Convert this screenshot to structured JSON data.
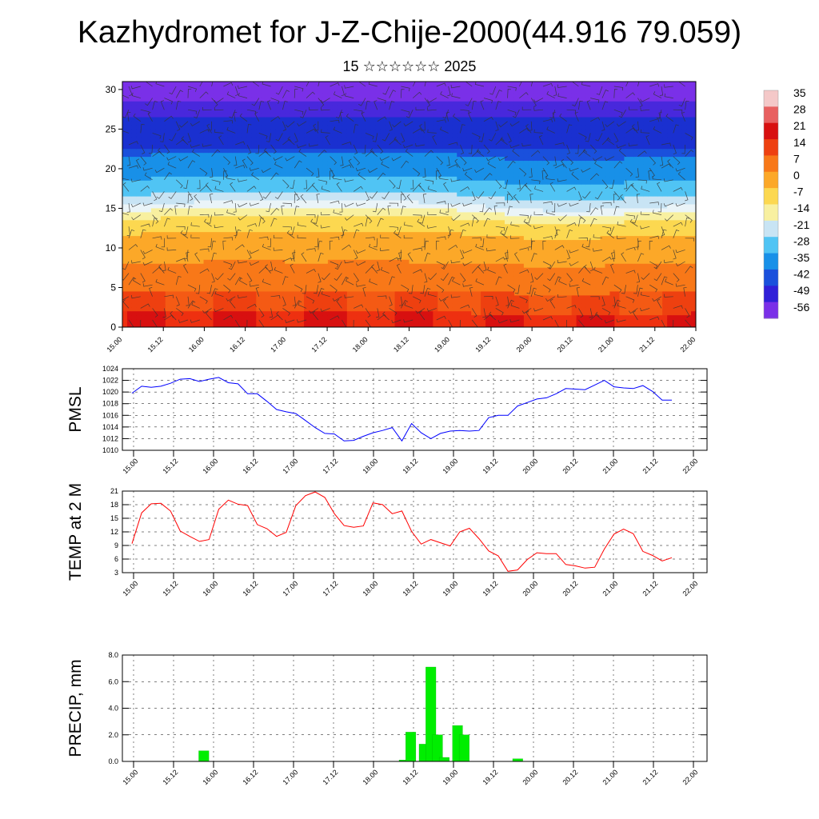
{
  "header": {
    "title": "Kazhydromet for J-Z-Chije-2000(44.916 79.059)",
    "subtitle": "15 ☆☆☆☆☆☆ 2025"
  },
  "x_ticks": [
    "15.00",
    "15.12",
    "16.00",
    "16.12",
    "17.00",
    "17.12",
    "18.00",
    "18.12",
    "19.00",
    "19.12",
    "20.00",
    "20.12",
    "21.00",
    "21.12",
    "22.00"
  ],
  "chart_data": [
    {
      "type": "heatmap",
      "name": "vertical-temperature-wind-section",
      "x_ticks": [
        "15.00",
        "15.12",
        "16.00",
        "16.12",
        "17.00",
        "17.12",
        "18.00",
        "18.12",
        "19.00",
        "19.12",
        "20.00",
        "20.12",
        "21.00",
        "21.12",
        "22.00"
      ],
      "y_ticks": [
        0,
        5,
        10,
        15,
        20,
        25,
        30
      ],
      "ylim": [
        0,
        31
      ],
      "colorbar": {
        "labels": [
          "35",
          "28",
          "21",
          "14",
          "7",
          "0",
          "-7",
          "-14",
          "-21",
          "-28",
          "-35",
          "-42",
          "-49",
          "-56"
        ],
        "colors": [
          "#f4c8c8",
          "#e86060",
          "#d81010",
          "#ee4010",
          "#f87818",
          "#fca828",
          "#fcd850",
          "#f8f0a0",
          "#c8e4f4",
          "#50c4f4",
          "#1890e8",
          "#1a50dc",
          "#3020d8",
          "#7a30e8"
        ]
      },
      "freezing_level": [
        14.6,
        14.8,
        15.0,
        15.2,
        15.0,
        15.0,
        15.2,
        15.0,
        14.8,
        14.4,
        14.0,
        13.8,
        14.2,
        14.4,
        14.6
      ],
      "wind": "wind barbs overlay"
    },
    {
      "type": "line",
      "name": "pmsl",
      "ylabel": "PMSL",
      "ylim": [
        1010,
        1024
      ],
      "yticks": [
        1010,
        1012,
        1014,
        1016,
        1018,
        1020,
        1022,
        1024
      ],
      "color": "#0000ff",
      "values": [
        1019.8,
        1021.0,
        1020.8,
        1021.0,
        1021.5,
        1022.2,
        1022.3,
        1021.8,
        1022.2,
        1022.5,
        1021.6,
        1021.4,
        1019.7,
        1019.7,
        1018.4,
        1017.0,
        1016.6,
        1016.3,
        1015.1,
        1013.9,
        1012.9,
        1012.8,
        1011.6,
        1011.7,
        1012.4,
        1013.0,
        1013.4,
        1013.9,
        1011.6,
        1014.6,
        1013.0,
        1012.0,
        1012.9,
        1013.3,
        1013.4,
        1013.3,
        1013.4,
        1015.6,
        1016.0,
        1016.0,
        1017.6,
        1018.2,
        1018.8,
        1019.0,
        1019.7,
        1020.6,
        1020.5,
        1020.4,
        1021.2,
        1022.0,
        1020.9,
        1020.7,
        1020.6,
        1021.1,
        1020.1,
        1018.6,
        1018.6
      ]
    },
    {
      "type": "line",
      "name": "temp-2m",
      "ylabel": "TEMP at 2 M",
      "ylim": [
        3,
        21
      ],
      "yticks": [
        3,
        6,
        9,
        12,
        15,
        18,
        21
      ],
      "color": "#ff0000",
      "values": [
        9.4,
        16.2,
        18.2,
        18.3,
        16.6,
        12.2,
        11.0,
        9.9,
        10.3,
        17.0,
        19.0,
        18.1,
        17.8,
        13.6,
        12.7,
        11.0,
        11.9,
        17.8,
        20.0,
        20.8,
        19.6,
        16.0,
        13.4,
        13.0,
        13.3,
        18.4,
        18.0,
        16.0,
        16.6,
        12.1,
        9.3,
        10.3,
        9.6,
        8.9,
        12.0,
        12.8,
        10.5,
        7.8,
        6.7,
        3.3,
        3.6,
        5.9,
        7.4,
        7.2,
        7.2,
        4.8,
        4.5,
        4.0,
        4.2,
        8.2,
        11.5,
        12.6,
        11.6,
        7.7,
        6.8,
        5.6,
        6.3
      ]
    },
    {
      "type": "bar",
      "name": "precipitation",
      "ylabel": "PRECIP, mm",
      "ylim": [
        0,
        8
      ],
      "yticks": [
        "0.0",
        "2.0",
        "4.0",
        "6.0",
        "8.0"
      ],
      "color": "#00ee00",
      "values": [
        0,
        0,
        0,
        0,
        0,
        0,
        0,
        0,
        0,
        0,
        0.8,
        0,
        0,
        0,
        0,
        0,
        0,
        0,
        0,
        0,
        0,
        0,
        0,
        0,
        0,
        0,
        0,
        0,
        0,
        0,
        0,
        0,
        0,
        0,
        0,
        0,
        0,
        0,
        0,
        0,
        0.1,
        2.2,
        0,
        1.3,
        7.1,
        2.0,
        0.3,
        0,
        2.7,
        2.0,
        0,
        0,
        0,
        0,
        0,
        0,
        0,
        0.2,
        0,
        0,
        0,
        0,
        0,
        0,
        0,
        0,
        0,
        0,
        0,
        0,
        0,
        0,
        0,
        0,
        0,
        0,
        0,
        0,
        0,
        0,
        0,
        0,
        0,
        0
      ]
    }
  ]
}
